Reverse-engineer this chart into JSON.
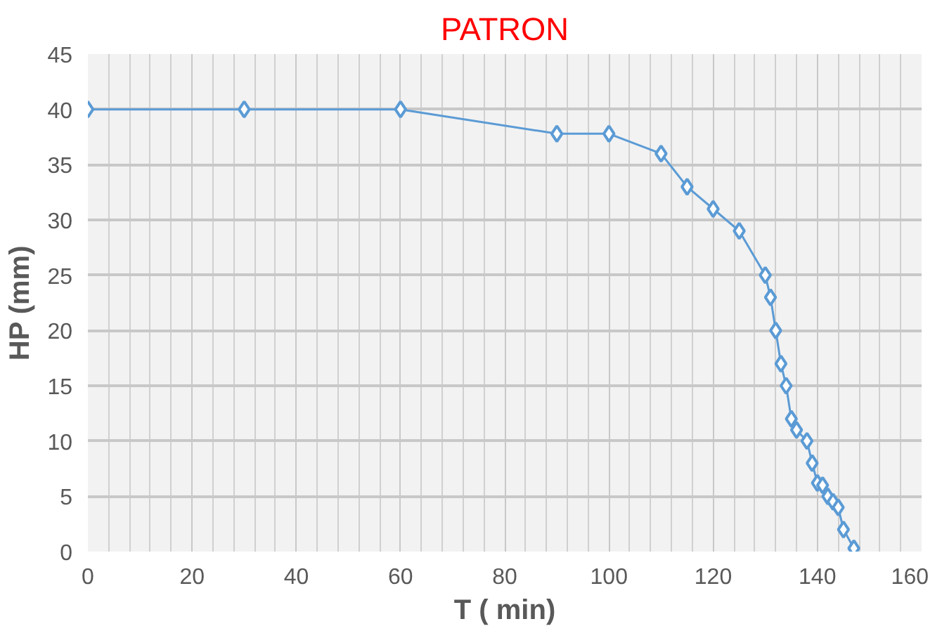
{
  "chart_data": {
    "type": "line",
    "title": "PATRON",
    "xlabel": "T ( min)",
    "ylabel": "HP (mm)",
    "x": [
      0,
      30,
      60,
      90,
      100,
      110,
      115,
      120,
      125,
      130,
      131,
      132,
      133,
      134,
      135,
      136,
      138,
      139,
      140,
      141,
      142,
      143,
      144,
      145,
      147
    ],
    "series": [
      {
        "color": "#5b9bd5",
        "values": [
          40,
          40,
          40,
          37.8,
          37.8,
          36,
          33,
          31,
          29,
          25,
          23,
          20,
          17,
          15,
          12,
          11,
          10,
          8,
          6.2,
          6,
          5,
          4.5,
          4,
          2,
          0.3
        ]
      }
    ],
    "xlim": [
      0,
      160
    ],
    "ylim": [
      0,
      45
    ],
    "xticks": [
      0,
      20,
      40,
      60,
      80,
      100,
      120,
      140,
      160
    ],
    "yticks": [
      0,
      5,
      10,
      15,
      20,
      25,
      30,
      35,
      40,
      45
    ],
    "grid": true,
    "marker": "diamond",
    "line_style": "solid"
  }
}
